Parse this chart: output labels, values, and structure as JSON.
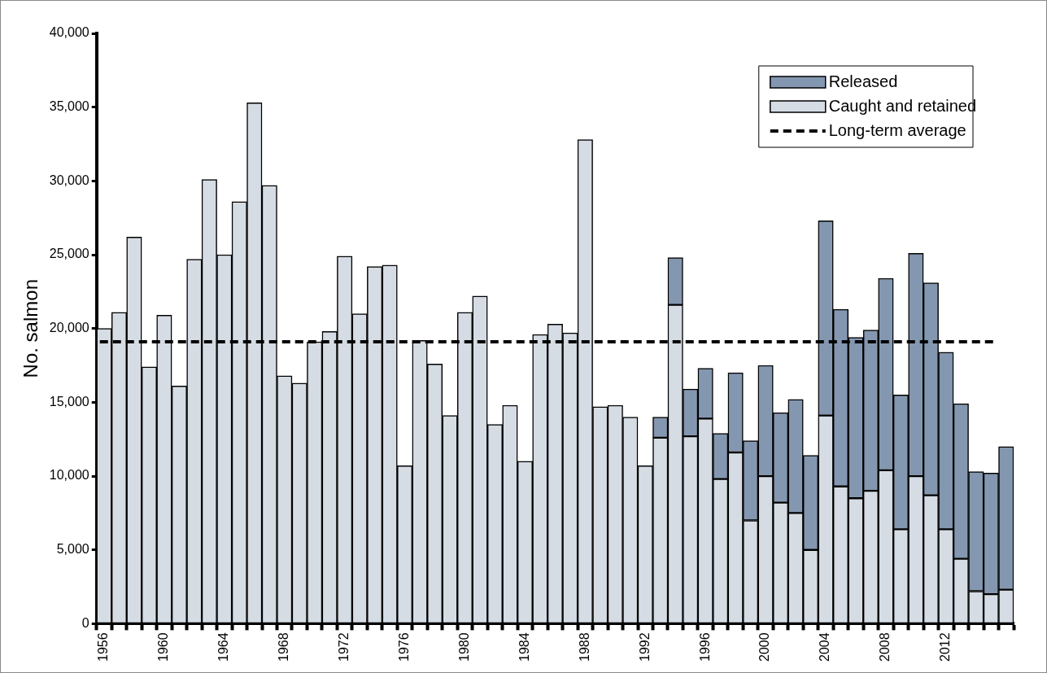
{
  "chart_data": {
    "type": "bar",
    "stacked": true,
    "ylabel": "No. salmon",
    "categories": [
      "1956",
      null,
      null,
      null,
      "1960",
      null,
      null,
      null,
      "1964",
      null,
      null,
      null,
      "1968",
      null,
      null,
      null,
      "1972",
      null,
      null,
      null,
      "1976",
      null,
      null,
      null,
      "1980",
      null,
      null,
      null,
      "1984",
      null,
      null,
      null,
      "1988",
      null,
      null,
      null,
      "1992",
      null,
      null,
      null,
      "1996",
      null,
      null,
      null,
      "2000",
      null,
      null,
      null,
      "2004",
      null,
      null,
      null,
      "2008",
      null,
      null,
      null,
      "2012",
      null,
      null,
      null,
      null
    ],
    "series": [
      {
        "name": "Caught and retained",
        "color": "#d6dce4",
        "values": [
          20000,
          21100,
          26200,
          17400,
          20900,
          16100,
          24700,
          30100,
          25000,
          28600,
          35300,
          29700,
          16800,
          16300,
          19100,
          19800,
          24900,
          21000,
          24200,
          24300,
          10700,
          19200,
          17600,
          14100,
          21100,
          22200,
          13500,
          14800,
          11000,
          19600,
          20300,
          19700,
          32800,
          14700,
          14800,
          14000,
          10700,
          12600,
          21600,
          12700,
          13900,
          9800,
          11600,
          7000,
          10000,
          8200,
          7500,
          5000,
          14100,
          9300,
          8500,
          9000,
          10400,
          6400,
          10000,
          8700,
          6400,
          4400,
          2200,
          2000,
          2300
        ]
      },
      {
        "name": "Released",
        "color": "#8497b0",
        "values": [
          null,
          null,
          null,
          null,
          null,
          null,
          null,
          null,
          null,
          null,
          null,
          null,
          null,
          null,
          null,
          null,
          null,
          null,
          null,
          null,
          null,
          null,
          null,
          null,
          null,
          null,
          null,
          null,
          null,
          null,
          null,
          null,
          null,
          null,
          null,
          null,
          null,
          1400,
          3200,
          3200,
          3400,
          3100,
          5400,
          5400,
          7500,
          6100,
          7700,
          6400,
          13200,
          12000,
          10900,
          10900,
          13000,
          9100,
          15100,
          14400,
          12000,
          10500,
          8100,
          8200,
          9700
        ]
      }
    ],
    "ylim": [
      0,
      40000
    ],
    "yticks": [
      {
        "value": 0,
        "label": "0"
      },
      {
        "value": 5000,
        "label": "5,000"
      },
      {
        "value": 10000,
        "label": "10,000"
      },
      {
        "value": 15000,
        "label": "15,000"
      },
      {
        "value": 20000,
        "label": "20,000"
      },
      {
        "value": 25000,
        "label": "25,000"
      },
      {
        "value": 30000,
        "label": "30,000"
      },
      {
        "value": 35000,
        "label": "35,000"
      },
      {
        "value": 40000,
        "label": "40,000"
      }
    ],
    "ref_lines": [
      {
        "axis": "y",
        "value": 19100,
        "label": "Long-term average",
        "color": "#000000",
        "line_style": "dashed"
      }
    ],
    "grid": false,
    "legend": "top right"
  }
}
